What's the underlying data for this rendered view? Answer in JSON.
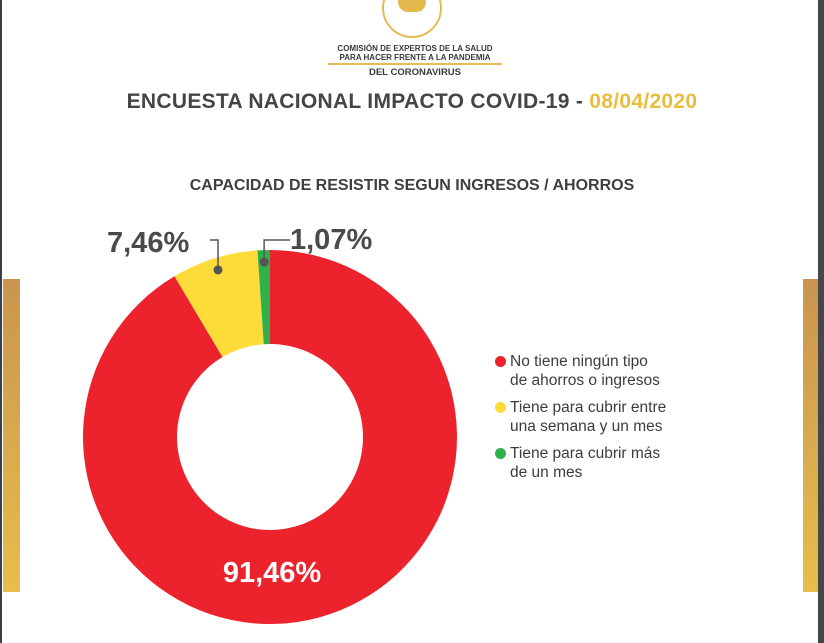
{
  "header": {
    "org_line1": "COMISIÓN DE EXPERTOS DE LA SALUD",
    "org_line2": "PARA HACER FRENTE A LA PANDEMIA",
    "org_line3": "DEL CORONAVIRUS",
    "title": "ENCUESTA NACIONAL IMPACTO COVID-19 - ",
    "date": "08/04/2020"
  },
  "chart_data": {
    "type": "pie",
    "title": "CAPACIDAD DE RESISTIR SEGUN INGRESOS / AHORROS",
    "donut": true,
    "slices": [
      {
        "label": "No tiene ningún tipo de ahorros o ingresos",
        "value": 91.46,
        "display": "91,46%",
        "color": "#ec222c"
      },
      {
        "label": "Tiene para cubrir entre una semana y un mes",
        "value": 7.46,
        "display": "7,46%",
        "color": "#fddc3a"
      },
      {
        "label": "Tiene para cubrir más de un mes",
        "value": 1.07,
        "display": "1,07%",
        "color": "#2fb24b"
      }
    ],
    "legend_lines": [
      [
        "No tiene ningún tipo",
        "de ahorros o ingresos"
      ],
      [
        "Tiene para cubrir entre",
        "una semana y un mes"
      ],
      [
        "Tiene para cubrir más",
        "de un mes"
      ]
    ],
    "legend_position": "right"
  }
}
